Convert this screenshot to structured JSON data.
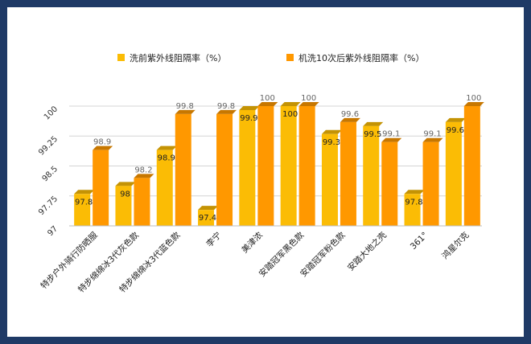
{
  "chart_data": {
    "type": "bar",
    "title": "",
    "xlabel": "",
    "ylabel": "",
    "ylim": [
      97,
      100
    ],
    "yticks": [
      "97",
      "97.75",
      "98.5",
      "99.25",
      "100"
    ],
    "legend_position": "top",
    "grid": true,
    "categories": [
      "特步户外骑行防晒服",
      "特步绵绵冰3代灰色款",
      "特步绵绵冰3代蓝色款",
      "李宁",
      "美津浓",
      "安踏冠军黑色款",
      "安踏冠军粉色款",
      "安踏大地之壳",
      "361°",
      "鸿星尔克"
    ],
    "series": [
      {
        "name": "洗前紫外线阻隔率（%）",
        "color": "#fbbc05",
        "values": [
          97.8,
          98,
          98.9,
          97.4,
          99.9,
          100,
          99.3,
          99.5,
          97.8,
          99.6
        ],
        "labels": [
          "97.8",
          "98",
          "98.9",
          "97.4",
          "99.9",
          "100",
          "99.3",
          "99.5",
          "97.8",
          "99.6"
        ]
      },
      {
        "name": "机洗10次后紫外线阻隔率（%）",
        "color": "#ff9800",
        "values": [
          98.9,
          98.2,
          99.8,
          99.8,
          100,
          100,
          99.6,
          99.1,
          99.1,
          100
        ],
        "labels": [
          "98.9",
          "98.2",
          "99.8",
          "99.8",
          "100",
          "100",
          "99.6",
          "99.1",
          "99.1",
          "100"
        ]
      }
    ]
  }
}
